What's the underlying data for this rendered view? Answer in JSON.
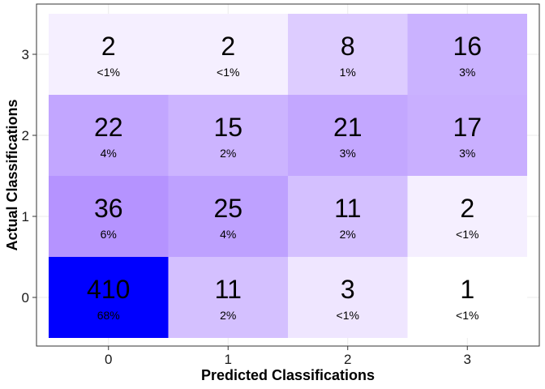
{
  "chart_data": {
    "type": "heatmap",
    "title": "",
    "xlabel": "Predicted Classifications",
    "ylabel": "Actual Classifications",
    "x_categories": [
      "0",
      "1",
      "2",
      "3"
    ],
    "y_categories": [
      "0",
      "1",
      "2",
      "3"
    ],
    "color_low": "#ffffff",
    "color_high": "#0000ff",
    "grid": true,
    "cells": [
      {
        "predicted": "0",
        "actual": "0",
        "count": 410,
        "percent_label": "68%"
      },
      {
        "predicted": "1",
        "actual": "0",
        "count": 11,
        "percent_label": "2%"
      },
      {
        "predicted": "2",
        "actual": "0",
        "count": 3,
        "percent_label": "<1%"
      },
      {
        "predicted": "3",
        "actual": "0",
        "count": 1,
        "percent_label": "<1%"
      },
      {
        "predicted": "0",
        "actual": "1",
        "count": 36,
        "percent_label": "6%"
      },
      {
        "predicted": "1",
        "actual": "1",
        "count": 25,
        "percent_label": "4%"
      },
      {
        "predicted": "2",
        "actual": "1",
        "count": 11,
        "percent_label": "2%"
      },
      {
        "predicted": "3",
        "actual": "1",
        "count": 2,
        "percent_label": "<1%"
      },
      {
        "predicted": "0",
        "actual": "2",
        "count": 22,
        "percent_label": "4%"
      },
      {
        "predicted": "1",
        "actual": "2",
        "count": 15,
        "percent_label": "2%"
      },
      {
        "predicted": "2",
        "actual": "2",
        "count": 21,
        "percent_label": "3%"
      },
      {
        "predicted": "3",
        "actual": "2",
        "count": 17,
        "percent_label": "3%"
      },
      {
        "predicted": "0",
        "actual": "3",
        "count": 2,
        "percent_label": "<1%"
      },
      {
        "predicted": "1",
        "actual": "3",
        "count": 2,
        "percent_label": "<1%"
      },
      {
        "predicted": "2",
        "actual": "3",
        "count": 8,
        "percent_label": "1%"
      },
      {
        "predicted": "3",
        "actual": "3",
        "count": 16,
        "percent_label": "3%"
      }
    ]
  }
}
